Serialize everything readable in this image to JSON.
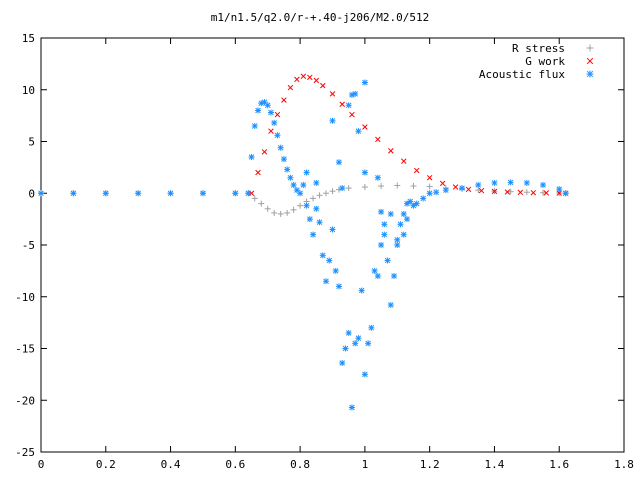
{
  "chart_data": {
    "type": "scatter",
    "title": "m1/n1.5/q2.0/r-+.40-j206/M2.0/512",
    "xlabel": "",
    "ylabel": "",
    "xlim": [
      0,
      1.8
    ],
    "ylim": [
      -25,
      15
    ],
    "x_ticks": [
      "0",
      "0.2",
      "0.4",
      "0.6",
      "0.8",
      "1",
      "1.2",
      "1.4",
      "1.6",
      "1.8"
    ],
    "y_ticks": [
      "-25",
      "-20",
      "-15",
      "-10",
      "-5",
      "0",
      "5",
      "10",
      "15"
    ],
    "grid": false,
    "legend_position": "top-right",
    "series": [
      {
        "name": "R stress",
        "marker": "+",
        "color": "#a0a0a0",
        "points": [
          [
            0.0,
            0
          ],
          [
            0.1,
            0
          ],
          [
            0.2,
            0
          ],
          [
            0.3,
            0
          ],
          [
            0.4,
            0
          ],
          [
            0.5,
            0
          ],
          [
            0.6,
            0
          ],
          [
            0.64,
            0
          ],
          [
            0.66,
            -0.5
          ],
          [
            0.68,
            -1.0
          ],
          [
            0.7,
            -1.5
          ],
          [
            0.72,
            -1.9
          ],
          [
            0.74,
            -2.0
          ],
          [
            0.76,
            -1.9
          ],
          [
            0.78,
            -1.6
          ],
          [
            0.8,
            -1.2
          ],
          [
            0.82,
            -0.8
          ],
          [
            0.84,
            -0.5
          ],
          [
            0.86,
            -0.2
          ],
          [
            0.88,
            0.0
          ],
          [
            0.9,
            0.2
          ],
          [
            0.92,
            0.35
          ],
          [
            0.95,
            0.5
          ],
          [
            1.0,
            0.6
          ],
          [
            1.05,
            0.7
          ],
          [
            1.1,
            0.75
          ],
          [
            1.15,
            0.7
          ],
          [
            1.2,
            0.65
          ],
          [
            1.25,
            0.5
          ],
          [
            1.3,
            0.4
          ],
          [
            1.35,
            0.3
          ],
          [
            1.4,
            0.2
          ],
          [
            1.45,
            0.15
          ],
          [
            1.5,
            0.1
          ],
          [
            1.55,
            0.05
          ],
          [
            1.6,
            0.02
          ],
          [
            1.62,
            0.0
          ]
        ]
      },
      {
        "name": "G work",
        "marker": "x",
        "color": "#ff0000",
        "points": [
          [
            0.65,
            0
          ],
          [
            0.67,
            2.0
          ],
          [
            0.69,
            4.0
          ],
          [
            0.71,
            6.0
          ],
          [
            0.73,
            7.6
          ],
          [
            0.75,
            9.0
          ],
          [
            0.77,
            10.2
          ],
          [
            0.79,
            11.0
          ],
          [
            0.81,
            11.3
          ],
          [
            0.83,
            11.2
          ],
          [
            0.85,
            10.9
          ],
          [
            0.87,
            10.4
          ],
          [
            0.9,
            9.6
          ],
          [
            0.93,
            8.6
          ],
          [
            0.96,
            7.6
          ],
          [
            1.0,
            6.4
          ],
          [
            1.04,
            5.2
          ],
          [
            1.08,
            4.1
          ],
          [
            1.12,
            3.1
          ],
          [
            1.16,
            2.2
          ],
          [
            1.2,
            1.5
          ],
          [
            1.24,
            0.95
          ],
          [
            1.28,
            0.6
          ],
          [
            1.32,
            0.38
          ],
          [
            1.36,
            0.25
          ],
          [
            1.4,
            0.18
          ],
          [
            1.44,
            0.12
          ],
          [
            1.48,
            0.08
          ],
          [
            1.52,
            0.05
          ],
          [
            1.56,
            0.03
          ],
          [
            1.6,
            0.01
          ],
          [
            1.62,
            0.0
          ]
        ]
      },
      {
        "name": "Acoustic flux",
        "marker": "*",
        "color": "#1e90ff",
        "points": [
          [
            0.0,
            0
          ],
          [
            0.1,
            0
          ],
          [
            0.2,
            0
          ],
          [
            0.3,
            0
          ],
          [
            0.4,
            0
          ],
          [
            0.5,
            0
          ],
          [
            0.6,
            0
          ],
          [
            0.64,
            0
          ],
          [
            0.65,
            3.5
          ],
          [
            0.66,
            6.5
          ],
          [
            0.67,
            8.0
          ],
          [
            0.68,
            8.7
          ],
          [
            0.69,
            8.8
          ],
          [
            0.7,
            8.5
          ],
          [
            0.71,
            7.8
          ],
          [
            0.72,
            6.8
          ],
          [
            0.73,
            5.6
          ],
          [
            0.74,
            4.4
          ],
          [
            0.75,
            3.3
          ],
          [
            0.76,
            2.3
          ],
          [
            0.77,
            1.5
          ],
          [
            0.78,
            0.8
          ],
          [
            0.79,
            0.3
          ],
          [
            0.8,
            0.0
          ],
          [
            0.81,
            0.8
          ],
          [
            0.82,
            -1.2
          ],
          [
            0.83,
            -2.5
          ],
          [
            0.84,
            -4.0
          ],
          [
            0.85,
            -1.5
          ],
          [
            0.86,
            -2.8
          ],
          [
            0.87,
            -6.0
          ],
          [
            0.88,
            -8.5
          ],
          [
            0.89,
            -6.5
          ],
          [
            0.9,
            -3.5
          ],
          [
            0.91,
            -7.5
          ],
          [
            0.92,
            -9.0
          ],
          [
            0.93,
            -16.4
          ],
          [
            0.94,
            -15.0
          ],
          [
            0.95,
            -13.5
          ],
          [
            0.96,
            -20.7
          ],
          [
            0.97,
            -14.5
          ],
          [
            0.98,
            -14.0
          ],
          [
            0.99,
            -9.4
          ],
          [
            1.0,
            -17.5
          ],
          [
            1.01,
            -14.5
          ],
          [
            1.02,
            -13.0
          ],
          [
            1.03,
            -7.5
          ],
          [
            1.04,
            -8.0
          ],
          [
            1.05,
            -5.0
          ],
          [
            1.06,
            -4.0
          ],
          [
            1.07,
            -6.5
          ],
          [
            1.08,
            -10.8
          ],
          [
            1.09,
            -8.0
          ],
          [
            1.1,
            -4.5
          ],
          [
            1.11,
            -3.0
          ],
          [
            1.12,
            -2.0
          ],
          [
            1.13,
            -1.0
          ],
          [
            1.14,
            -0.8
          ],
          [
            1.15,
            -1.2
          ],
          [
            1.16,
            -1.0
          ],
          [
            1.18,
            -0.5
          ],
          [
            1.2,
            0.0
          ],
          [
            1.22,
            0.1
          ],
          [
            1.25,
            0.3
          ],
          [
            1.3,
            0.5
          ],
          [
            1.35,
            0.8
          ],
          [
            1.4,
            1.0
          ],
          [
            1.45,
            1.05
          ],
          [
            1.5,
            1.0
          ],
          [
            1.55,
            0.8
          ],
          [
            1.6,
            0.4
          ],
          [
            1.62,
            0.0
          ],
          [
            0.82,
            2.0
          ],
          [
            0.85,
            1.0
          ],
          [
            0.9,
            7.0
          ],
          [
            0.92,
            3.0
          ],
          [
            0.93,
            0.5
          ],
          [
            0.95,
            8.5
          ],
          [
            0.96,
            9.5
          ],
          [
            0.97,
            9.6
          ],
          [
            0.98,
            6.0
          ],
          [
            1.0,
            10.7
          ],
          [
            1.0,
            2.0
          ],
          [
            1.04,
            1.5
          ],
          [
            1.05,
            -1.8
          ],
          [
            1.06,
            -3.0
          ],
          [
            1.08,
            -2.0
          ],
          [
            1.1,
            -5.0
          ],
          [
            1.12,
            -4.0
          ],
          [
            1.13,
            -2.5
          ]
        ]
      }
    ]
  }
}
